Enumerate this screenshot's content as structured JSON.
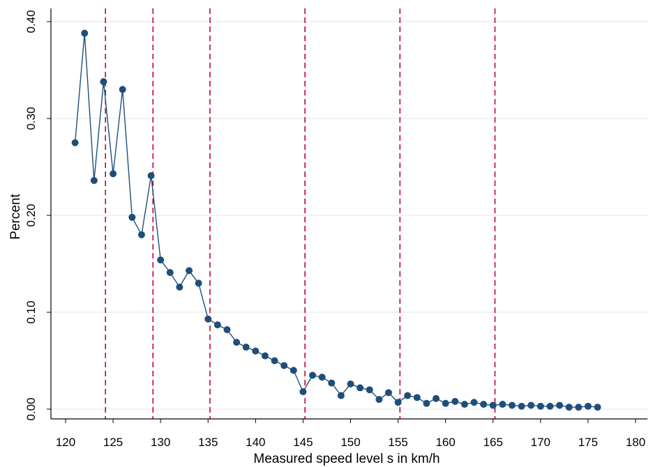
{
  "chart_data": {
    "type": "line",
    "title": "",
    "xlabel": "Measured speed level s in km/h",
    "ylabel": "Percent",
    "xlim": [
      120,
      180
    ],
    "ylim": [
      0,
      0.4
    ],
    "xticks": [
      120,
      125,
      130,
      135,
      140,
      145,
      150,
      155,
      160,
      165,
      170,
      175,
      180
    ],
    "yticks": [
      0,
      0.1,
      0.2,
      0.3,
      0.4
    ],
    "ytick_labels": [
      "0.00",
      "0.10",
      "0.20",
      "0.30",
      "0.40"
    ],
    "grid": "horizontal",
    "reference_lines_x": [
      124.2,
      129.2,
      135.2,
      145.2,
      155.2,
      165.2
    ],
    "colors": {
      "series": "#1f4e79",
      "reference": "#c00040",
      "grid": "#e6e6e6"
    },
    "series": [
      {
        "x": [
          121,
          122,
          123,
          124,
          125,
          126,
          127,
          128,
          129,
          130,
          131,
          132,
          133,
          134,
          135,
          136,
          137,
          138,
          139,
          140,
          141,
          142,
          143,
          144,
          145,
          146,
          147,
          148,
          149,
          150,
          151,
          152,
          153,
          154,
          155,
          156,
          157,
          158,
          159,
          160,
          161,
          162,
          163,
          164,
          165,
          166,
          167,
          168,
          169,
          170,
          171,
          172,
          173,
          174,
          175,
          176
        ],
        "y": [
          0.275,
          0.388,
          0.236,
          0.338,
          0.243,
          0.33,
          0.198,
          0.18,
          0.241,
          0.154,
          0.141,
          0.126,
          0.143,
          0.13,
          0.093,
          0.087,
          0.082,
          0.069,
          0.064,
          0.06,
          0.055,
          0.05,
          0.045,
          0.04,
          0.018,
          0.035,
          0.033,
          0.027,
          0.014,
          0.026,
          0.022,
          0.02,
          0.01,
          0.017,
          0.007,
          0.014,
          0.012,
          0.006,
          0.011,
          0.006,
          0.008,
          0.005,
          0.007,
          0.005,
          0.004,
          0.005,
          0.004,
          0.003,
          0.004,
          0.003,
          0.003,
          0.004,
          0.002,
          0.002,
          0.003,
          0.002
        ]
      }
    ]
  }
}
